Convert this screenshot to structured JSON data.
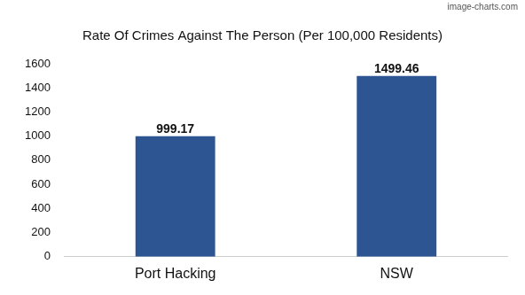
{
  "chart_data": {
    "type": "bar",
    "title": "Rate Of Crimes Against The Person (Per 100,000 Residents)",
    "annotations": [
      "image-charts.com"
    ],
    "categories": [
      "Port Hacking",
      "NSW"
    ],
    "values": [
      999.17,
      1499.46
    ],
    "color": "#2c5592",
    "ylim": [
      0,
      1600
    ],
    "yticks": [
      0,
      200,
      400,
      600,
      800,
      1000,
      1200,
      1400,
      1600
    ],
    "grid": false,
    "data_labels": true
  }
}
